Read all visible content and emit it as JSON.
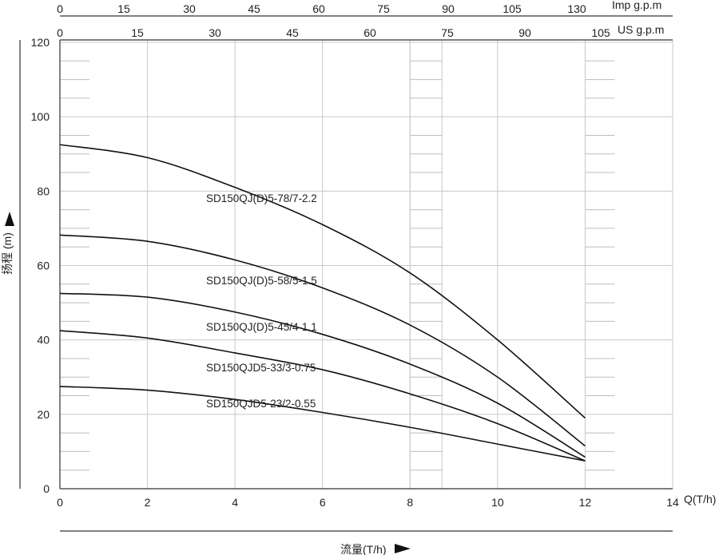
{
  "chart_data": {
    "type": "line",
    "xlabel": "流量(T/h)",
    "ylabel": "扬程 (m)",
    "x_axis_end_label": "Q(T/h)",
    "xlim": [
      0,
      14
    ],
    "ylim": [
      0,
      120
    ],
    "x_ticks": [
      0,
      2,
      4,
      6,
      8,
      10,
      12,
      14
    ],
    "y_ticks": [
      0,
      20,
      40,
      60,
      80,
      100,
      120
    ],
    "grid": true,
    "secondary_axes": [
      {
        "label": "Imp g.p.m",
        "ticks": [
          0,
          15,
          30,
          45,
          60,
          75,
          90,
          105,
          130
        ]
      },
      {
        "label": "US g.p.m",
        "ticks": [
          0,
          15,
          30,
          45,
          60,
          75,
          90,
          105
        ]
      }
    ],
    "series": [
      {
        "name": "SD150QJ(D)5-78/7-2.2",
        "x": [
          0,
          2,
          4,
          6,
          8,
          10,
          12
        ],
        "y": [
          92.5,
          89,
          81,
          71,
          58,
          40,
          19
        ]
      },
      {
        "name": "SD150QJ(D)5-58/5-1.5",
        "x": [
          0,
          2,
          4,
          6,
          8,
          10,
          12
        ],
        "y": [
          68.2,
          66.5,
          61.5,
          54,
          44,
          30,
          11.5
        ]
      },
      {
        "name": "SD150QJ(D)5-45/4-1.1",
        "x": [
          0,
          2,
          4,
          6,
          8,
          10,
          12
        ],
        "y": [
          52.5,
          51.5,
          47.5,
          41.5,
          33.5,
          23,
          8.5
        ]
      },
      {
        "name": "SD150QJD5-33/3-0.75",
        "x": [
          0,
          2,
          4,
          6,
          8,
          10,
          12
        ],
        "y": [
          42.5,
          40.5,
          36.5,
          32,
          25.5,
          17.5,
          7.5
        ]
      },
      {
        "name": "SD150QJD5-23/2-0.55",
        "x": [
          0,
          2,
          4,
          6,
          8,
          10,
          12
        ],
        "y": [
          27.5,
          26.5,
          24,
          20.5,
          16.5,
          12,
          7.5
        ]
      }
    ]
  }
}
